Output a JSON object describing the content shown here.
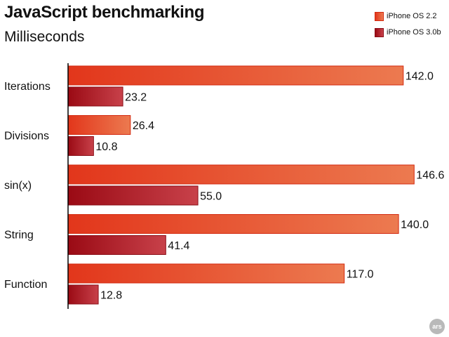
{
  "chart_data": {
    "type": "bar",
    "orientation": "horizontal",
    "title": "JavaScript benchmarking",
    "subtitle": "Milliseconds",
    "xlabel": "",
    "ylabel": "",
    "categories": [
      "Iterations",
      "Divisions",
      "sin(x)",
      "String",
      "Function"
    ],
    "series": [
      {
        "name": "iPhone OS 2.2",
        "values": [
          142.0,
          26.4,
          146.6,
          140.0,
          117.0
        ],
        "labels": [
          "142.0",
          "26.4",
          "146.6",
          "140.0",
          "117.0"
        ],
        "color_start": "#e2361b",
        "color_end": "#ec7a50",
        "stroke": "#d32a10"
      },
      {
        "name": "iPhone OS 3.0b",
        "values": [
          23.2,
          10.8,
          55.0,
          41.4,
          12.8
        ],
        "labels": [
          "23.2",
          "10.8",
          "55.0",
          "41.4",
          "12.8"
        ],
        "color_start": "#9a0a14",
        "color_end": "#c8414a",
        "stroke": "#8a0d16"
      }
    ],
    "xlim": [
      0,
      150
    ],
    "grid": false,
    "legend_position": "top-right"
  },
  "logo": {
    "text": "ars"
  }
}
